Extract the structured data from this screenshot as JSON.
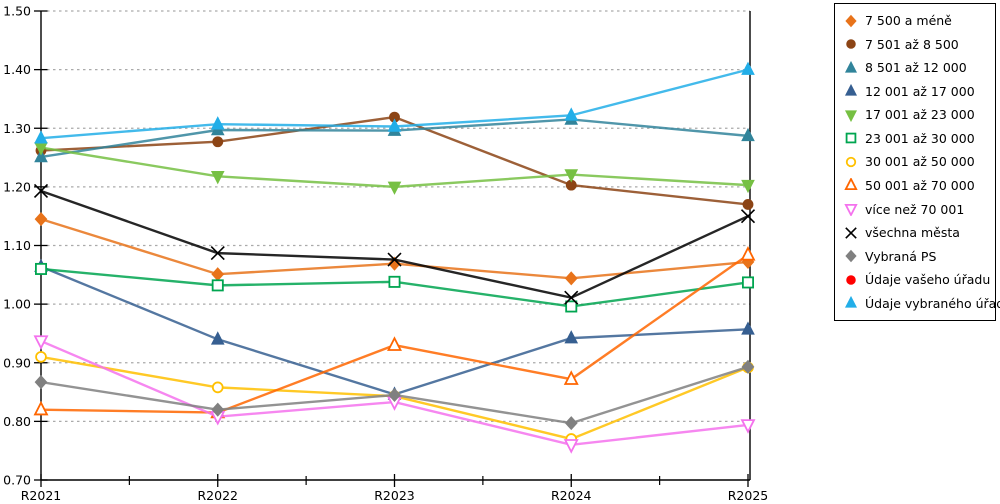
{
  "chart_data": {
    "type": "line",
    "title": "",
    "xlabel": "",
    "ylabel": "",
    "x_categories": [
      "R2021",
      "R2022",
      "R2023",
      "R2024",
      "R2025"
    ],
    "ylim": [
      0.7,
      1.5
    ],
    "ytick_step": 0.1,
    "ytick_labels": [
      "0.70",
      "0.80",
      "0.90",
      "1.00",
      "1.10",
      "1.20",
      "1.30",
      "1.40",
      "1.50"
    ],
    "grid": "horizontal-dashed",
    "legend_position": "right",
    "axis_color": "#000000",
    "grid_color": "#aaaaaa",
    "series": [
      {
        "name": "7 500 a méně",
        "marker": "diamond",
        "filled": true,
        "color": "#E8731A",
        "values": [
          1.145,
          1.051,
          1.069,
          1.044,
          1.072
        ]
      },
      {
        "name": "7 501 až 8 500",
        "marker": "circle",
        "filled": true,
        "color": "#8C4415",
        "values": [
          1.262,
          1.277,
          1.319,
          1.203,
          1.17
        ]
      },
      {
        "name": "8 501 až 12 000",
        "marker": "triangle",
        "filled": true,
        "color": "#31849B",
        "values": [
          1.251,
          1.297,
          1.296,
          1.315,
          1.287
        ]
      },
      {
        "name": "12 001 až 17 000",
        "marker": "triangle",
        "filled": true,
        "color": "#365F91",
        "values": [
          1.064,
          0.94,
          0.846,
          0.942,
          0.957
        ]
      },
      {
        "name": "17 001 až 23 000",
        "marker": "triangle-down",
        "filled": true,
        "color": "#76C043",
        "values": [
          1.267,
          1.218,
          1.2,
          1.221,
          1.203
        ]
      },
      {
        "name": "23 001 až 30 000",
        "marker": "square",
        "filled": false,
        "color": "#00A550",
        "values": [
          1.06,
          1.032,
          1.038,
          0.996,
          1.037
        ]
      },
      {
        "name": "30 001 až 50 000",
        "marker": "circle",
        "filled": false,
        "color": "#FFC000",
        "values": [
          0.91,
          0.858,
          0.843,
          0.77,
          0.892
        ]
      },
      {
        "name": "50 001 až 70 000",
        "marker": "triangle",
        "filled": false,
        "color": "#FF6600",
        "values": [
          0.82,
          0.815,
          0.93,
          0.872,
          1.084
        ]
      },
      {
        "name": "více než 70 001",
        "marker": "triangle-down",
        "filled": false,
        "color": "#F472ED",
        "values": [
          0.937,
          0.808,
          0.833,
          0.76,
          0.794
        ]
      },
      {
        "name": "všechna města",
        "marker": "x",
        "filled": false,
        "color": "#000000",
        "values": [
          1.193,
          1.087,
          1.076,
          1.011,
          1.15
        ]
      },
      {
        "name": "Vybraná PS",
        "marker": "diamond",
        "filled": true,
        "color": "#808080",
        "values": [
          0.867,
          0.82,
          0.845,
          0.797,
          0.893
        ]
      },
      {
        "name": "Údaje vašeho úřadu",
        "marker": "circle",
        "filled": true,
        "color": "#FF0000",
        "values": [
          null,
          null,
          null,
          null,
          null
        ]
      },
      {
        "name": "Údaje vybraného úřadu",
        "marker": "triangle",
        "filled": true,
        "color": "#22AEE8",
        "values": [
          1.283,
          1.307,
          1.303,
          1.322,
          1.4
        ]
      }
    ]
  }
}
